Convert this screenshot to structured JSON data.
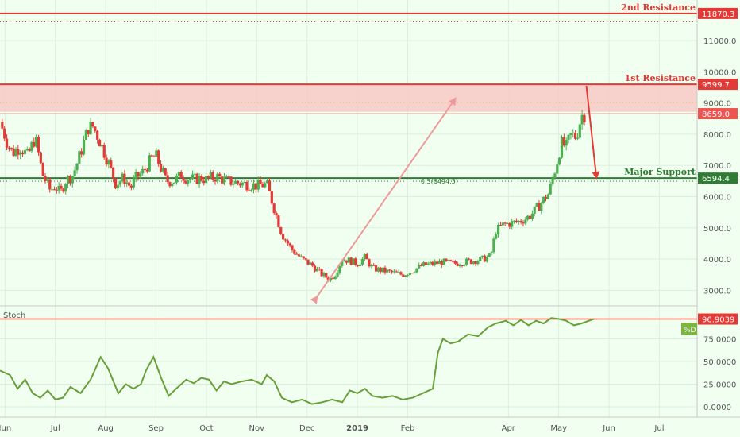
{
  "chart_data": {
    "type": "candlestick",
    "title": "",
    "colors": {
      "background": "#f0fff0",
      "up": "#4caf50",
      "down": "#e53935",
      "resistance": "#e53935",
      "support": "#2e7d32",
      "zone": "#f8c9c6",
      "arrow_pink": "#ef9a9a",
      "stoch_line": "#689f38",
      "price_tag": "#ef5350",
      "stoch_tag": "#7cb342"
    },
    "price_axis": {
      "min": 2500,
      "max": 12300,
      "ticks": [
        3000,
        4000,
        5000,
        6000,
        7000,
        8000,
        9000,
        10000,
        11000
      ],
      "tick_labels": [
        "3000.0",
        "4000.0",
        "5000.0",
        "6000.0",
        "7000.0",
        "8000.0",
        "9000.0",
        "10000.0",
        "11000.0"
      ]
    },
    "time_axis": {
      "labels": [
        "Jun",
        "Jul",
        "Aug",
        "Sep",
        "Oct",
        "Nov",
        "Dec",
        "2019",
        "Feb",
        "Apr",
        "May",
        "Jun",
        "Jul"
      ],
      "month_index": [
        0,
        1,
        2,
        3,
        4,
        5,
        6,
        7,
        8,
        10,
        11,
        12,
        13
      ],
      "start_month": -0.1,
      "end_month": 13.75
    },
    "price_path": [
      [
        -0.1,
        8400
      ],
      [
        0.05,
        7700
      ],
      [
        0.15,
        7400
      ],
      [
        0.3,
        7600
      ],
      [
        0.45,
        7300
      ],
      [
        0.6,
        7900
      ],
      [
        0.75,
        6700
      ],
      [
        0.9,
        6200
      ],
      [
        1.0,
        6350
      ],
      [
        1.1,
        6100
      ],
      [
        1.2,
        6500
      ],
      [
        1.35,
        6700
      ],
      [
        1.5,
        7400
      ],
      [
        1.65,
        8200
      ],
      [
        1.75,
        8250
      ],
      [
        1.85,
        7900
      ],
      [
        1.95,
        7500
      ],
      [
        2.05,
        7100
      ],
      [
        2.2,
        6400
      ],
      [
        2.35,
        6600
      ],
      [
        2.5,
        6300
      ],
      [
        2.6,
        6600
      ],
      [
        2.75,
        6800
      ],
      [
        2.9,
        7200
      ],
      [
        3.0,
        7300
      ],
      [
        3.1,
        6900
      ],
      [
        3.2,
        6500
      ],
      [
        3.35,
        6500
      ],
      [
        3.5,
        6700
      ],
      [
        3.6,
        6600
      ],
      [
        3.75,
        6550
      ],
      [
        3.9,
        6600
      ],
      [
        4.0,
        6550
      ],
      [
        4.2,
        6650
      ],
      [
        4.4,
        6500
      ],
      [
        4.6,
        6450
      ],
      [
        4.8,
        6400
      ],
      [
        5.0,
        6350
      ],
      [
        5.2,
        6400
      ],
      [
        5.35,
        5600
      ],
      [
        5.5,
        4800
      ],
      [
        5.7,
        4300
      ],
      [
        5.9,
        4000
      ],
      [
        6.1,
        3800
      ],
      [
        6.3,
        3500
      ],
      [
        6.45,
        3350
      ],
      [
        6.55,
        3500
      ],
      [
        6.7,
        4000
      ],
      [
        6.85,
        3950
      ],
      [
        7.0,
        3850
      ],
      [
        7.15,
        4050
      ],
      [
        7.3,
        3700
      ],
      [
        7.45,
        3650
      ],
      [
        7.6,
        3600
      ],
      [
        7.75,
        3550
      ],
      [
        7.9,
        3500
      ],
      [
        8.05,
        3600
      ],
      [
        8.3,
        3800
      ],
      [
        8.5,
        3850
      ],
      [
        8.7,
        3900
      ],
      [
        8.9,
        3850
      ],
      [
        9.1,
        3900
      ],
      [
        9.3,
        3950
      ],
      [
        9.5,
        4000
      ],
      [
        9.65,
        4100
      ],
      [
        9.75,
        4900
      ],
      [
        9.9,
        5100
      ],
      [
        10.05,
        5150
      ],
      [
        10.2,
        5200
      ],
      [
        10.35,
        5300
      ],
      [
        10.5,
        5500
      ],
      [
        10.65,
        5800
      ],
      [
        10.8,
        6100
      ],
      [
        10.95,
        7000
      ],
      [
        11.05,
        7700
      ],
      [
        11.15,
        7600
      ],
      [
        11.25,
        8000
      ],
      [
        11.35,
        7900
      ],
      [
        11.45,
        8600
      ],
      [
        11.55,
        8659
      ]
    ],
    "levels": [
      {
        "name": "2nd Resistance",
        "value": 11870.3,
        "tag": "11870.3",
        "style": "solid"
      },
      {
        "name": "1st Resistance",
        "value": 9599.7,
        "tag": "9599.7",
        "style": "solid"
      },
      {
        "name": "Major Support",
        "value": 6594.4,
        "tag": "6594.4",
        "style": "solid"
      }
    ],
    "dotted_levels": [
      11600,
      9020,
      6494.3
    ],
    "current_price": {
      "value": 8659.0,
      "tag": "8659.0"
    },
    "fib_label": "0.5(6494.3)",
    "fib_value": 6494.3,
    "resistance_zone": [
      8720,
      9599.7
    ],
    "fib_arrow": {
      "from": [
        6.2,
        2800
      ],
      "to": [
        8.95,
        9150
      ]
    },
    "drop_arrow": {
      "from": [
        11.55,
        9550
      ],
      "to": [
        11.75,
        6600
      ]
    },
    "stoch": {
      "label": "Stoch",
      "axis_ticks": [
        0,
        25,
        50,
        75
      ],
      "axis_labels": [
        "0.0000",
        "25.0000",
        "50.0000",
        "75.0000"
      ],
      "level": 96.9039,
      "level_tag": "96.9039",
      "legend_tag": "%D",
      "values": [
        [
          -0.1,
          40
        ],
        [
          0.1,
          35
        ],
        [
          0.25,
          20
        ],
        [
          0.4,
          30
        ],
        [
          0.55,
          15
        ],
        [
          0.7,
          10
        ],
        [
          0.85,
          18
        ],
        [
          1.0,
          8
        ],
        [
          1.15,
          10
        ],
        [
          1.3,
          22
        ],
        [
          1.5,
          15
        ],
        [
          1.7,
          30
        ],
        [
          1.9,
          55
        ],
        [
          2.05,
          42
        ],
        [
          2.25,
          15
        ],
        [
          2.4,
          25
        ],
        [
          2.55,
          20
        ],
        [
          2.7,
          25
        ],
        [
          2.8,
          40
        ],
        [
          2.95,
          55
        ],
        [
          3.1,
          32
        ],
        [
          3.25,
          12
        ],
        [
          3.4,
          20
        ],
        [
          3.6,
          30
        ],
        [
          3.75,
          26
        ],
        [
          3.9,
          32
        ],
        [
          4.05,
          30
        ],
        [
          4.2,
          18
        ],
        [
          4.35,
          28
        ],
        [
          4.5,
          25
        ],
        [
          4.7,
          28
        ],
        [
          4.9,
          30
        ],
        [
          5.1,
          25
        ],
        [
          5.2,
          35
        ],
        [
          5.35,
          28
        ],
        [
          5.5,
          10
        ],
        [
          5.7,
          5
        ],
        [
          5.9,
          8
        ],
        [
          6.1,
          3
        ],
        [
          6.3,
          5
        ],
        [
          6.5,
          8
        ],
        [
          6.7,
          5
        ],
        [
          6.85,
          18
        ],
        [
          7.0,
          15
        ],
        [
          7.15,
          20
        ],
        [
          7.3,
          12
        ],
        [
          7.5,
          10
        ],
        [
          7.7,
          12
        ],
        [
          7.9,
          8
        ],
        [
          8.1,
          10
        ],
        [
          8.3,
          15
        ],
        [
          8.5,
          20
        ],
        [
          8.6,
          60
        ],
        [
          8.7,
          75
        ],
        [
          8.85,
          70
        ],
        [
          9.0,
          72
        ],
        [
          9.2,
          80
        ],
        [
          9.4,
          78
        ],
        [
          9.6,
          88
        ],
        [
          9.75,
          92
        ],
        [
          9.95,
          95
        ],
        [
          10.1,
          90
        ],
        [
          10.25,
          96
        ],
        [
          10.4,
          90
        ],
        [
          10.55,
          95
        ],
        [
          10.7,
          92
        ],
        [
          10.85,
          98
        ],
        [
          11.0,
          97
        ],
        [
          11.15,
          95
        ],
        [
          11.3,
          90
        ],
        [
          11.45,
          92
        ],
        [
          11.6,
          95
        ],
        [
          11.7,
          97
        ]
      ]
    }
  }
}
